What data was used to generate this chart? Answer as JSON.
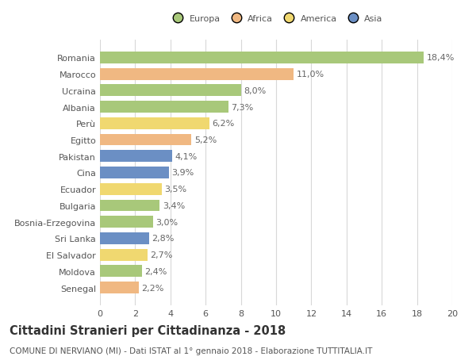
{
  "countries": [
    "Romania",
    "Marocco",
    "Ucraina",
    "Albania",
    "Perù",
    "Egitto",
    "Pakistan",
    "Cina",
    "Ecuador",
    "Bulgaria",
    "Bosnia-Erzegovina",
    "Sri Lanka",
    "El Salvador",
    "Moldova",
    "Senegal"
  ],
  "values": [
    18.4,
    11.0,
    8.0,
    7.3,
    6.2,
    5.2,
    4.1,
    3.9,
    3.5,
    3.4,
    3.0,
    2.8,
    2.7,
    2.4,
    2.2
  ],
  "labels": [
    "18,4%",
    "11,0%",
    "8,0%",
    "7,3%",
    "6,2%",
    "5,2%",
    "4,1%",
    "3,9%",
    "3,5%",
    "3,4%",
    "3,0%",
    "2,8%",
    "2,7%",
    "2,4%",
    "2,2%"
  ],
  "continents": [
    "Europa",
    "Africa",
    "Europa",
    "Europa",
    "America",
    "Africa",
    "Asia",
    "Asia",
    "America",
    "Europa",
    "Europa",
    "Asia",
    "America",
    "Europa",
    "Africa"
  ],
  "colors": {
    "Europa": "#a8c87a",
    "Africa": "#f0b882",
    "America": "#f0d870",
    "Asia": "#6b8fc4"
  },
  "legend_order": [
    "Europa",
    "Africa",
    "America",
    "Asia"
  ],
  "legend_colors": [
    "#a8c87a",
    "#f0b882",
    "#f0d870",
    "#6b8fc4"
  ],
  "xlim": [
    0,
    20
  ],
  "xticks": [
    0,
    2,
    4,
    6,
    8,
    10,
    12,
    14,
    16,
    18,
    20
  ],
  "title": "Cittadini Stranieri per Cittadinanza - 2018",
  "subtitle": "COMUNE DI NERVIANO (MI) - Dati ISTAT al 1° gennaio 2018 - Elaborazione TUTTITALIA.IT",
  "background_color": "#ffffff",
  "grid_color": "#d8d8d8",
  "bar_height": 0.72,
  "label_fontsize": 8,
  "tick_fontsize": 8,
  "title_fontsize": 10.5,
  "subtitle_fontsize": 7.5
}
